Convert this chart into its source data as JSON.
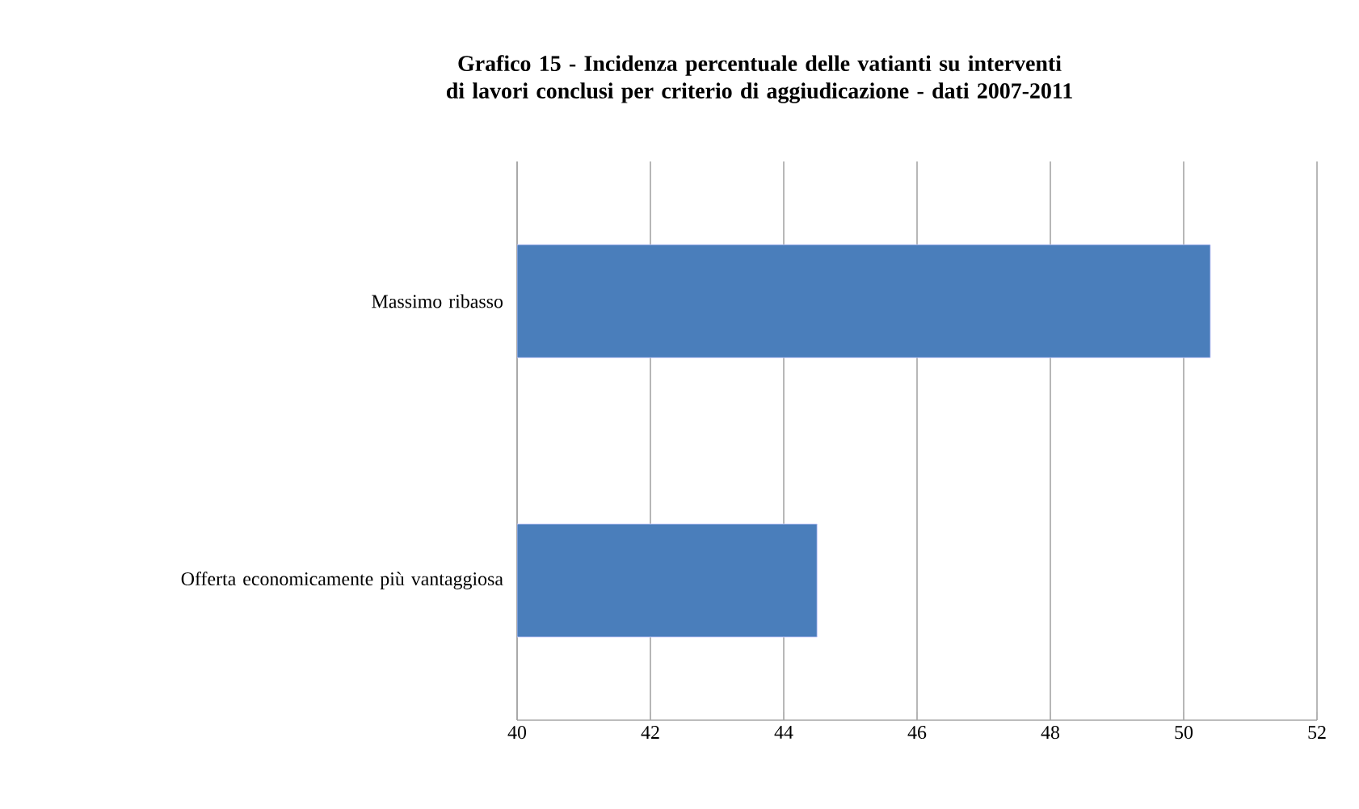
{
  "chart_data": {
    "type": "bar",
    "orientation": "horizontal",
    "title": "Grafico 15 - Incidenza percentuale delle vatianti su interventi di lavori conclusi per criterio di aggiudicazione - dati 2007-2011",
    "categories": [
      "Massimo ribasso",
      "Offerta economicamente più vantaggiosa"
    ],
    "values": [
      50.4,
      44.5
    ],
    "color": "#4a7ebb",
    "xlim": [
      40,
      52
    ],
    "xticks": [
      40,
      42,
      44,
      46,
      48,
      50,
      52
    ],
    "grid": "x"
  }
}
